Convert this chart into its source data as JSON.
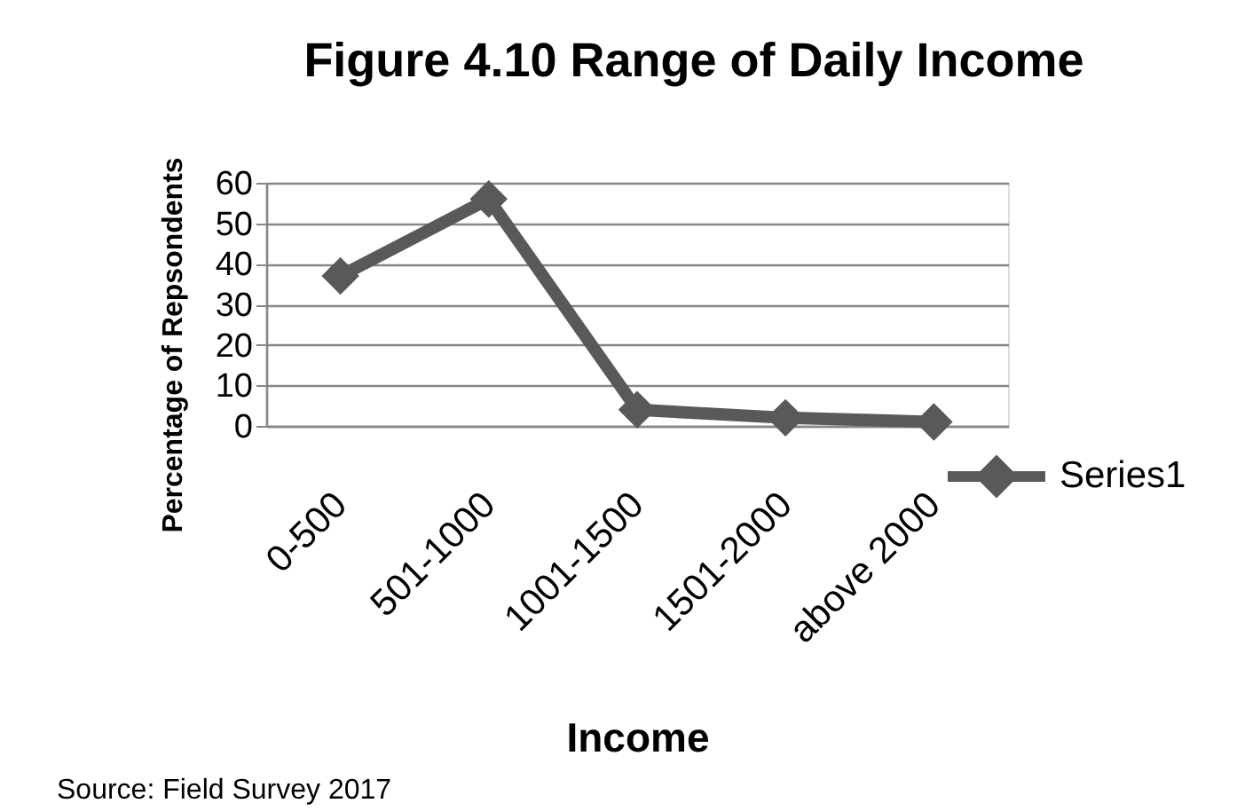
{
  "chart_data": {
    "type": "line",
    "title": "Figure 4.10 Range of Daily Income",
    "xlabel": "Income",
    "ylabel": "Percentage of Repsondents",
    "categories": [
      "0-500",
      "501-1000",
      "1001-1500",
      "1501-2000",
      "above 2000"
    ],
    "series": [
      {
        "name": "Series1",
        "color": "#595959",
        "values": [
          37,
          56,
          4,
          2,
          1
        ]
      }
    ],
    "ylim": [
      0,
      60
    ],
    "yticks": [
      0,
      10,
      20,
      30,
      40,
      50,
      60
    ],
    "grid": "y",
    "legend": "bottom right",
    "marker": "diamond",
    "line_style": "solid",
    "annotations": [
      "Source: Field Survey 2017"
    ]
  }
}
